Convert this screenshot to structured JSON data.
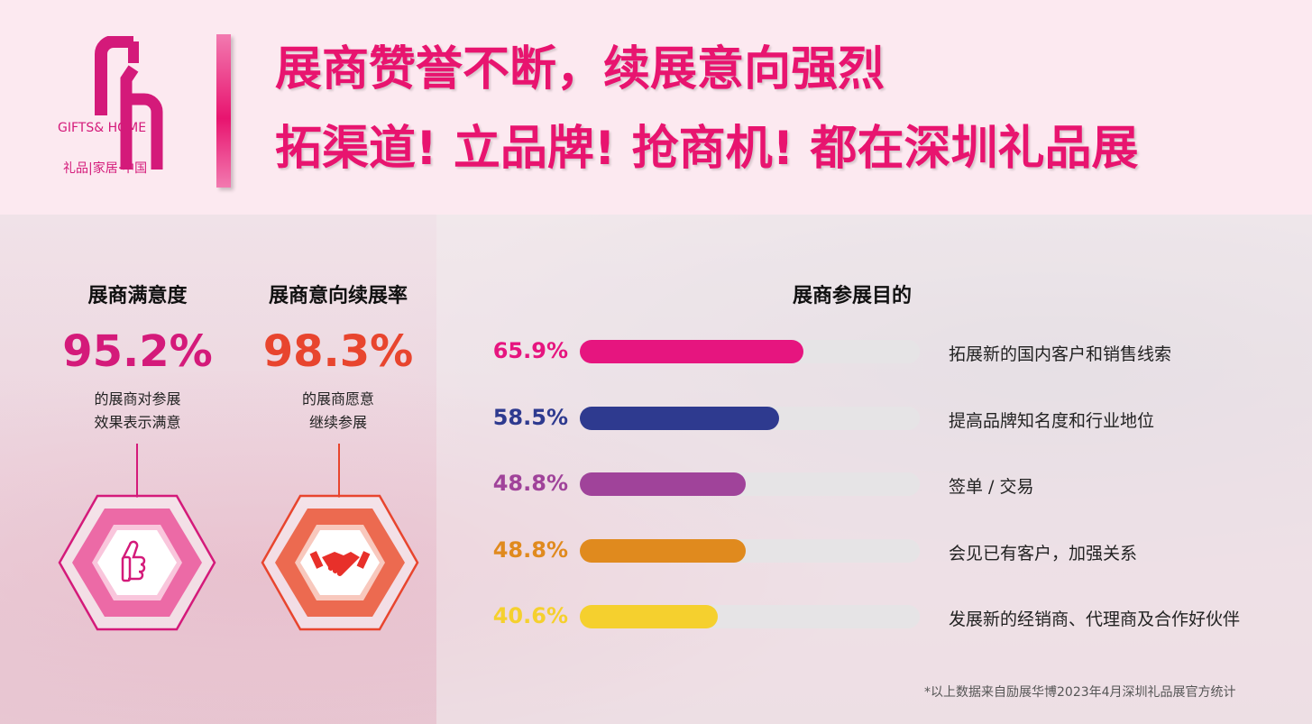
{
  "logo": {
    "mark": "Gh",
    "text_en": "GIFTS& HOME",
    "text_cn": "礼品|家居·中国"
  },
  "header": {
    "title_line1": "展商赞誉不断，续展意向强烈",
    "title_line2": "拓渠道! 立品牌! 抢商机!  都在深圳礼品展"
  },
  "stats": [
    {
      "heading": "展商满意度",
      "value": "95.2%",
      "desc1": "的展商对参展",
      "desc2": "效果表示满意",
      "color": "#d41a7a",
      "icon": "thumbs-up-icon"
    },
    {
      "heading": "展商意向续展率",
      "value": "98.3%",
      "desc1": "的展商愿意",
      "desc2": "继续参展",
      "color": "#e8452e",
      "icon": "handshake-icon"
    }
  ],
  "chart_data": {
    "type": "bar",
    "orientation": "horizontal",
    "title": "展商参展目的",
    "categories": [
      "拓展新的国内客户和销售线索",
      "提高品牌知名度和行业地位",
      "签单 / 交易",
      "会见已有客户，加强关系",
      "发展新的经销商、代理商及合作好伙伴"
    ],
    "values": [
      65.9,
      58.5,
      48.8,
      48.8,
      40.6
    ],
    "labels": [
      "65.9%",
      "58.5%",
      "48.8%",
      "48.8%",
      "40.6%"
    ],
    "colors": [
      "#e6157f",
      "#2e3a8f",
      "#a0439a",
      "#e08a1e",
      "#f5d02e"
    ],
    "xlim": [
      0,
      100
    ],
    "grid": false
  },
  "footnote": "*以上数据来自励展华博2023年4月深圳礼品展官方统计"
}
